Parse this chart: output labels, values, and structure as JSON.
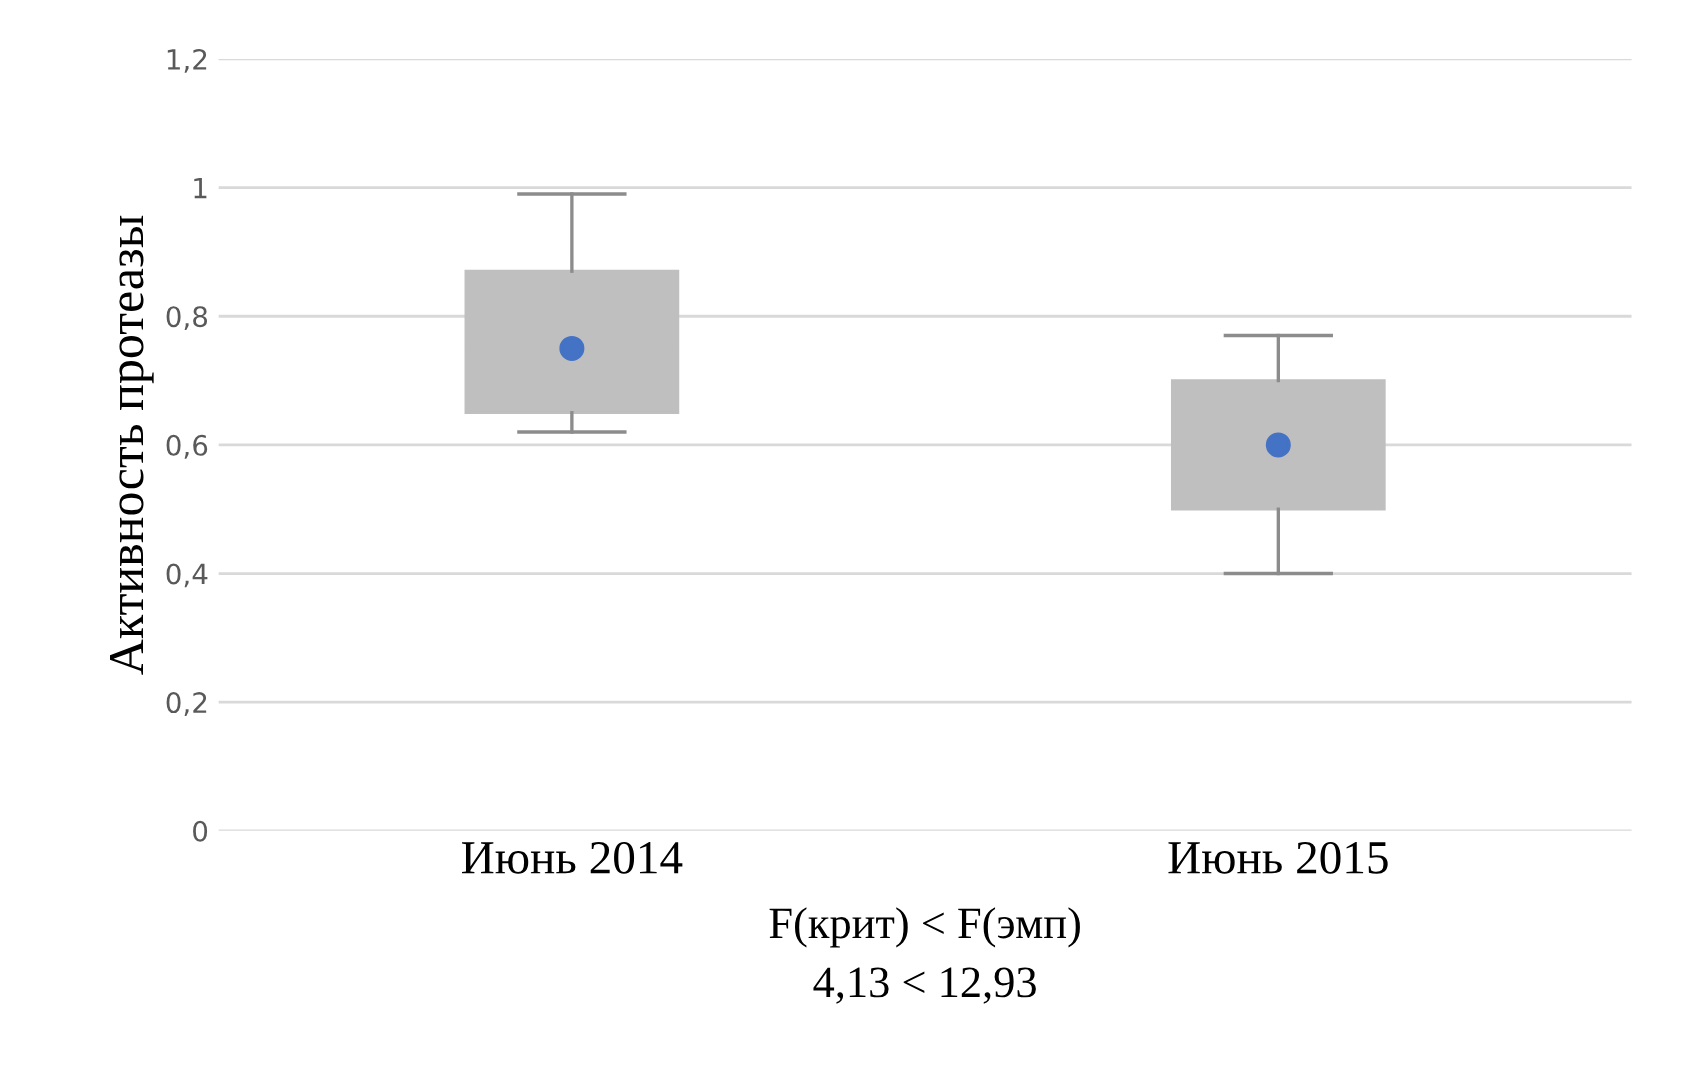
{
  "chart_data": {
    "type": "box",
    "ylabel": "Активность протеазы",
    "categories": [
      "Июнь 2014",
      "Июнь 2015"
    ],
    "boxes": [
      {
        "low": 0.62,
        "q1": 0.65,
        "median": 0.75,
        "q3": 0.87,
        "high": 0.99
      },
      {
        "low": 0.4,
        "q1": 0.5,
        "median": 0.6,
        "q3": 0.7,
        "high": 0.77
      }
    ],
    "color": "#bfbfbf",
    "series": [
      {
        "type": "scatter",
        "color": "#4472c4",
        "x": [
          "Июнь 2014",
          "Июнь 2015"
        ],
        "values": [
          0.75,
          0.6
        ]
      }
    ],
    "marker": "circle",
    "ylim": [
      0,
      1.2
    ],
    "yticks": [
      0,
      {
        "value": 0.2,
        "label": "0,2"
      },
      {
        "value": 0.4,
        "label": "0,4"
      },
      {
        "value": 0.6,
        "label": "0,6"
      },
      {
        "value": 0.8,
        "label": "0,8"
      },
      1,
      {
        "value": 1.2,
        "label": "1,2"
      }
    ],
    "grid": "y",
    "annotations": [
      "F(крит) < F(эмп)",
      "4,13 < 12,93"
    ]
  }
}
